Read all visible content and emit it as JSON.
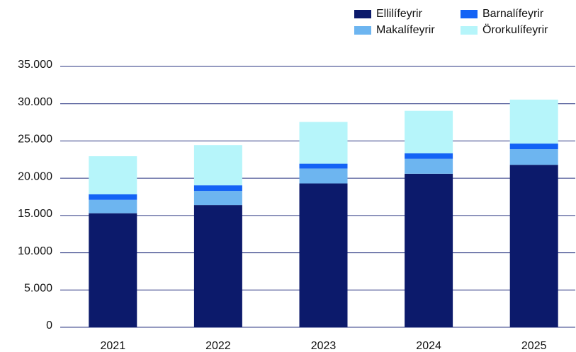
{
  "chart_data": {
    "type": "stacked_bar",
    "categories": [
      "2021",
      "2022",
      "2023",
      "2024",
      "2025"
    ],
    "series": [
      {
        "name": "Ellilífeyrir",
        "color": "#0c1a6b",
        "values": [
          15300,
          16400,
          19300,
          20600,
          21800
        ]
      },
      {
        "name": "Makalífeyrir",
        "color": "#6db5f0",
        "values": [
          1800,
          1900,
          2000,
          2000,
          2100
        ]
      },
      {
        "name": "Barnalífeyrir",
        "color": "#1463f5",
        "values": [
          750,
          750,
          650,
          750,
          750
        ]
      },
      {
        "name": "Örorkulífeyrir",
        "color": "#b6f5fa",
        "values": [
          5100,
          5400,
          5600,
          5700,
          5900
        ]
      }
    ],
    "ylim": [
      0,
      35000
    ],
    "yticks": [
      0,
      {
        "value": 5000,
        "label": "5.000"
      },
      {
        "value": 10000,
        "label": "10.000"
      },
      {
        "value": 15000,
        "label": "15.000"
      },
      {
        "value": 20000,
        "label": "20.000"
      },
      {
        "value": 25000,
        "label": "25.000"
      },
      {
        "value": 30000,
        "label": "30.000"
      },
      {
        "value": 35000,
        "label": "35.000"
      }
    ],
    "grid": true
  }
}
